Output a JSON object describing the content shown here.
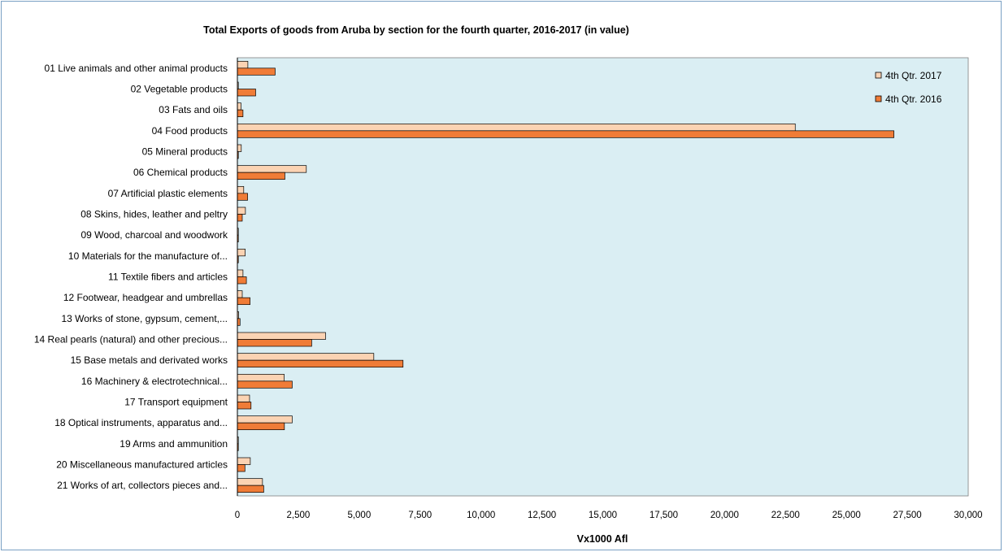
{
  "chart_data": {
    "type": "bar",
    "orientation": "horizontal",
    "title": "Total Exports of goods from Aruba by section for the fourth quarter, 2016-2017 (in value)",
    "xlabel": "Vx1000 Afl",
    "ylabel": "",
    "xlim": [
      0,
      30000
    ],
    "x_ticks": [
      "0",
      "2,500",
      "5,000",
      "7,500",
      "10,000",
      "12,500",
      "15,000",
      "17,500",
      "20,000",
      "22,500",
      "25,000",
      "27,500",
      "30,000"
    ],
    "grid": false,
    "legend_position": "top-right",
    "categories": [
      "01 Live animals and other animal products",
      "02 Vegetable products",
      "03 Fats and oils",
      "04 Food products",
      "05 Mineral products",
      "06 Chemical products",
      "07 Artificial plastic elements",
      "08 Skins, hides, leather and peltry",
      "09 Wood, charcoal and woodwork",
      "10 Materials for the manufacture of...",
      "11 Textile fibers and articles",
      "12 Footwear, headgear and umbrellas",
      "13 Works of stone, gypsum, cement,...",
      "14 Real pearls (natural) and other precious...",
      "15 Base metals and derivated works",
      "16 Machinery & electrotechnical...",
      "17 Transport equipment",
      "18 Optical instruments, apparatus and...",
      "19 Arms and ammunition",
      "20 Miscellaneous manufactured articles",
      "21 Works of art, collectors pieces and..."
    ],
    "series": [
      {
        "name": "4th Qtr. 2017",
        "color": "#fbd3b3",
        "values": [
          430,
          40,
          150,
          22900,
          160,
          2830,
          260,
          330,
          20,
          320,
          230,
          200,
          50,
          3620,
          5600,
          1920,
          500,
          2250,
          20,
          530,
          1030
        ]
      },
      {
        "name": "4th Qtr. 2016",
        "color": "#f07c37",
        "values": [
          1550,
          750,
          230,
          26950,
          30,
          1950,
          420,
          200,
          15,
          30,
          370,
          520,
          110,
          3050,
          6800,
          2250,
          560,
          1930,
          30,
          310,
          1080
        ]
      }
    ],
    "colors": {
      "plot_background": "#daeef3",
      "border": "#7aa0c4",
      "bar_outline": "#000000"
    }
  }
}
